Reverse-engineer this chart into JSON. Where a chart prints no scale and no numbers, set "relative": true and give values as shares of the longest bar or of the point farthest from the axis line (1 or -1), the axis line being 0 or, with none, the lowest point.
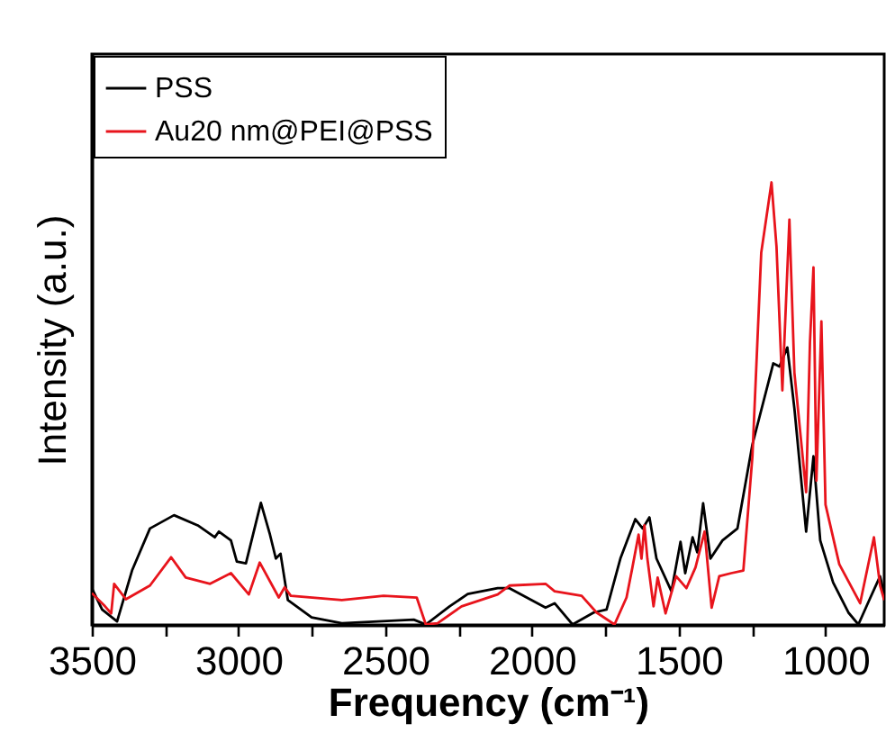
{
  "chart_data": {
    "type": "line",
    "xlabel": "Frequency (cm⁻¹)",
    "ylabel": "Intensity (a.u.)",
    "relative": true,
    "xlim": [
      3500,
      800
    ],
    "xticks": [
      3500,
      {
        "value": 3250,
        "label": null
      },
      3000,
      {
        "value": 2750,
        "label": null
      },
      2500,
      {
        "value": 2250,
        "label": null
      },
      2000,
      {
        "value": 1750,
        "label": null
      },
      1500,
      {
        "value": 1250,
        "label": null
      },
      1000
    ],
    "legend": "top left",
    "grid": false,
    "line_style": "solid",
    "marker": "none",
    "series": [
      {
        "name": "PSS",
        "color": "#000000",
        "x": [
          3500,
          3465,
          3414,
          3363,
          3302,
          3220,
          3139,
          3081,
          3067,
          3026,
          3006,
          2975,
          2924,
          2893,
          2873,
          2857,
          2832,
          2751,
          2648,
          2403,
          2362,
          2281,
          2219,
          2117,
          2077,
          1954,
          1923,
          1862,
          1790,
          1746,
          1699,
          1648,
          1623,
          1600,
          1576,
          1525,
          1494,
          1478,
          1453,
          1437,
          1417,
          1392,
          1351,
          1300,
          1249,
          1178,
          1157,
          1130,
          1106,
          1066,
          1041,
          1018,
          974,
          922,
          888,
          851,
          814,
          800
        ],
        "values": [
          0.083,
          0.035,
          0.008,
          0.123,
          0.218,
          0.248,
          0.225,
          0.198,
          0.211,
          0.191,
          0.143,
          0.139,
          0.276,
          0.204,
          0.15,
          0.161,
          0.056,
          0.017,
          0.004,
          0.012,
          0.001,
          0.042,
          0.07,
          0.083,
          0.083,
          0.039,
          0.049,
          0.001,
          0.028,
          0.035,
          0.15,
          0.239,
          0.218,
          0.243,
          0.15,
          0.076,
          0.188,
          0.117,
          0.198,
          0.164,
          0.275,
          0.15,
          0.191,
          0.218,
          0.408,
          0.591,
          0.584,
          0.627,
          0.489,
          0.211,
          0.381,
          0.191,
          0.096,
          0.028,
          0.001,
          0.056,
          0.11,
          0.069
        ]
      },
      {
        "name": "Au20 nm@PEI@PSS",
        "color": "#e8141c",
        "x": [
          3500,
          3455,
          3434,
          3424,
          3384,
          3302,
          3230,
          3180,
          3097,
          3026,
          2965,
          2928,
          2863,
          2843,
          2822,
          2648,
          2506,
          2393,
          2362,
          2322,
          2240,
          2117,
          2077,
          1954,
          1923,
          1831,
          1780,
          1719,
          1678,
          1658,
          1637,
          1627,
          1617,
          1607,
          1586,
          1572,
          1545,
          1509,
          1474,
          1443,
          1412,
          1388,
          1362,
          1321,
          1280,
          1249,
          1219,
          1184,
          1167,
          1147,
          1123,
          1106,
          1066,
          1053,
          1041,
          1031,
          1014,
          1000,
          953,
          882,
          835,
          814,
          800
        ],
        "values": [
          0.072,
          0.042,
          0.026,
          0.093,
          0.058,
          0.089,
          0.153,
          0.107,
          0.093,
          0.117,
          0.069,
          0.141,
          0.062,
          0.085,
          0.066,
          0.056,
          0.066,
          0.062,
          0.001,
          0.004,
          0.042,
          0.069,
          0.089,
          0.093,
          0.076,
          0.066,
          0.028,
          0.001,
          0.062,
          0.13,
          0.204,
          0.15,
          0.225,
          0.15,
          0.042,
          0.107,
          0.026,
          0.11,
          0.083,
          0.13,
          0.211,
          0.039,
          0.11,
          0.117,
          0.123,
          0.381,
          0.841,
          1,
          0.855,
          0.53,
          0.916,
          0.57,
          0.3,
          0.638,
          0.808,
          0.326,
          0.686,
          0.272,
          0.137,
          0.049,
          0.198,
          0.089,
          0.056
        ]
      }
    ]
  }
}
